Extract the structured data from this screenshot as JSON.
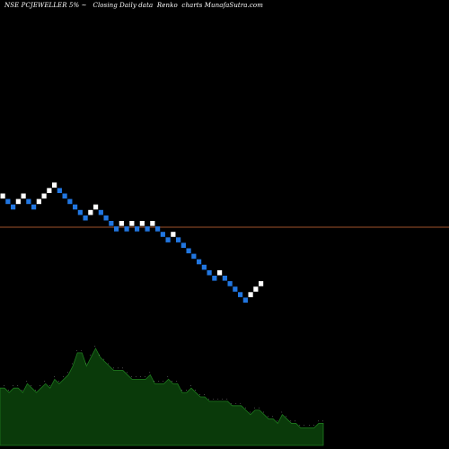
{
  "title": "NSE PCJEWELLER 5% ~   Closing Daily data  Renko  charts MunafaSutra.com",
  "chart_data": {
    "type": "renko",
    "brick_size_pct": 5,
    "x_start": 0.5,
    "y_start": 218.3,
    "bricks": [
      "up",
      "down",
      "down",
      "up",
      "up",
      "down",
      "down",
      "up",
      "up",
      "up",
      "up",
      "down",
      "down",
      "down",
      "down",
      "down",
      "down",
      "up",
      "up",
      "down",
      "down",
      "down",
      "down",
      "up",
      "down",
      "up",
      "down",
      "up",
      "down",
      "up",
      "down",
      "down",
      "down",
      "up",
      "down",
      "down",
      "down",
      "down",
      "down",
      "down",
      "down",
      "down",
      "up",
      "down",
      "down",
      "down",
      "down",
      "down",
      "up",
      "up",
      "up"
    ],
    "reference_line_y": 253,
    "volume": {
      "values": [
        13,
        13,
        12,
        13,
        13,
        12,
        14,
        13,
        12,
        13,
        14,
        13,
        15,
        14,
        15,
        16,
        18,
        21,
        21,
        18,
        20,
        22,
        20,
        19,
        18,
        17,
        17,
        17,
        16,
        15,
        15,
        15,
        15,
        16,
        14,
        14,
        14,
        15,
        14,
        14,
        12,
        12,
        13,
        12,
        11,
        11,
        10,
        10,
        10,
        10,
        10,
        9,
        9,
        9,
        8,
        7,
        8,
        8,
        7,
        6,
        6,
        5,
        7,
        6,
        5,
        5,
        4,
        4,
        4,
        4,
        5,
        5
      ],
      "ymax": 22
    },
    "colors": {
      "up": "#ffffff",
      "down": "#2176e0",
      "reference": "#a0522d",
      "volume_fill": "#0a3a0a",
      "volume_line": "#1e7a1e"
    }
  }
}
